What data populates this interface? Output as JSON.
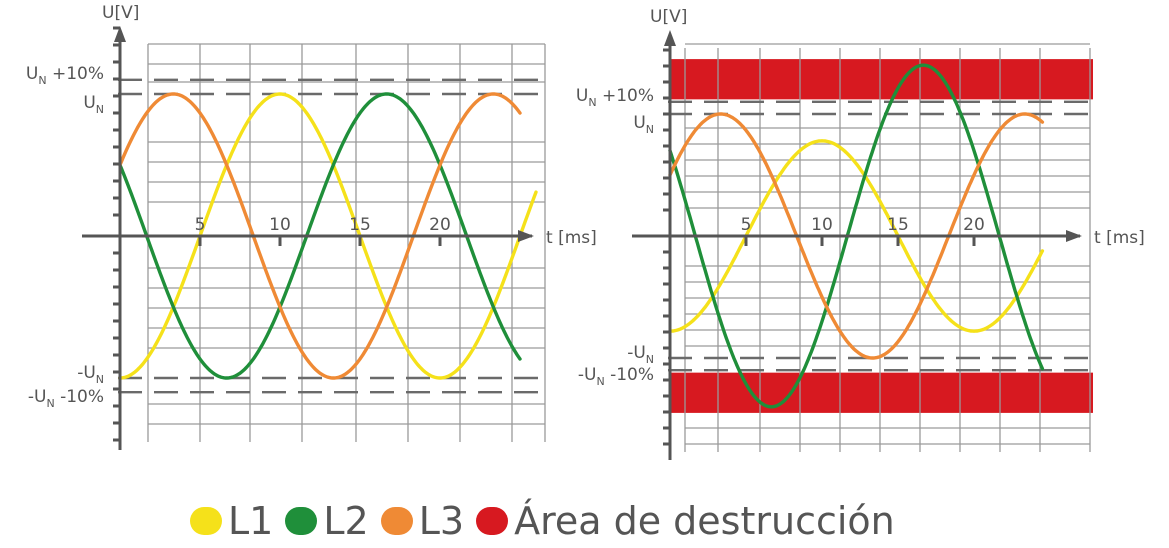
{
  "chart_data": [
    {
      "type": "line",
      "xlabel": "t [ms]",
      "ylabel": "U[V]",
      "xticks": [
        "5",
        "10",
        "15",
        "20"
      ],
      "xlim": [
        0,
        26
      ],
      "ylim": [
        -1.5,
        1.5
      ],
      "ylevels": {
        "un_plus": "U_N +10%",
        "un": "U_N",
        "neg_un": "-U_N",
        "neg_un_minus": "-U_N -10%"
      },
      "series": [
        {
          "name": "L1",
          "color": "#f5e11a",
          "amplitude": 1.0,
          "period_ms": 20,
          "phase_deg": -90,
          "x_end": 26
        },
        {
          "name": "L2",
          "color": "#1f8f3a",
          "amplitude": 1.0,
          "period_ms": 20,
          "phase_deg": 150,
          "x_end": 25
        },
        {
          "name": "L3",
          "color": "#ef8a35",
          "amplitude": 1.0,
          "period_ms": 20,
          "phase_deg": 30,
          "x_end": 25
        }
      ]
    },
    {
      "type": "line",
      "xlabel": "t [ms]",
      "ylabel": "U[V]",
      "xticks": [
        "5",
        "10",
        "15",
        "20"
      ],
      "xlim": [
        0,
        25
      ],
      "ylim": [
        -1.5,
        1.5
      ],
      "ylevels": {
        "un_plus": "U_N +10%",
        "un": "U_N",
        "neg_un": "-U_N",
        "neg_un_minus": "-U_N -10%"
      },
      "destruction_area": {
        "color": "#d71920",
        "upper": [
          1.12,
          1.45
        ],
        "lower": [
          -1.45,
          -1.12
        ]
      },
      "series": [
        {
          "name": "L1",
          "color": "#f5e11a",
          "amplitude": 0.78,
          "period_ms": 20,
          "phase_deg": -90,
          "x_end": 24.5
        },
        {
          "name": "L2",
          "color": "#1f8f3a",
          "amplitude": 1.4,
          "period_ms": 20,
          "phase_deg": 150,
          "x_end": 24.5
        },
        {
          "name": "L3",
          "color": "#ef8a35",
          "amplitude": 1.0,
          "period_ms": 20,
          "phase_deg": 30,
          "x_end": 24.5
        }
      ]
    }
  ],
  "legend": [
    {
      "label": "L1",
      "color": "#f5e11a"
    },
    {
      "label": "L2",
      "color": "#1f8f3a"
    },
    {
      "label": "L3",
      "color": "#ef8a35"
    },
    {
      "label": "Área de destrucción",
      "color": "#d71920"
    }
  ]
}
